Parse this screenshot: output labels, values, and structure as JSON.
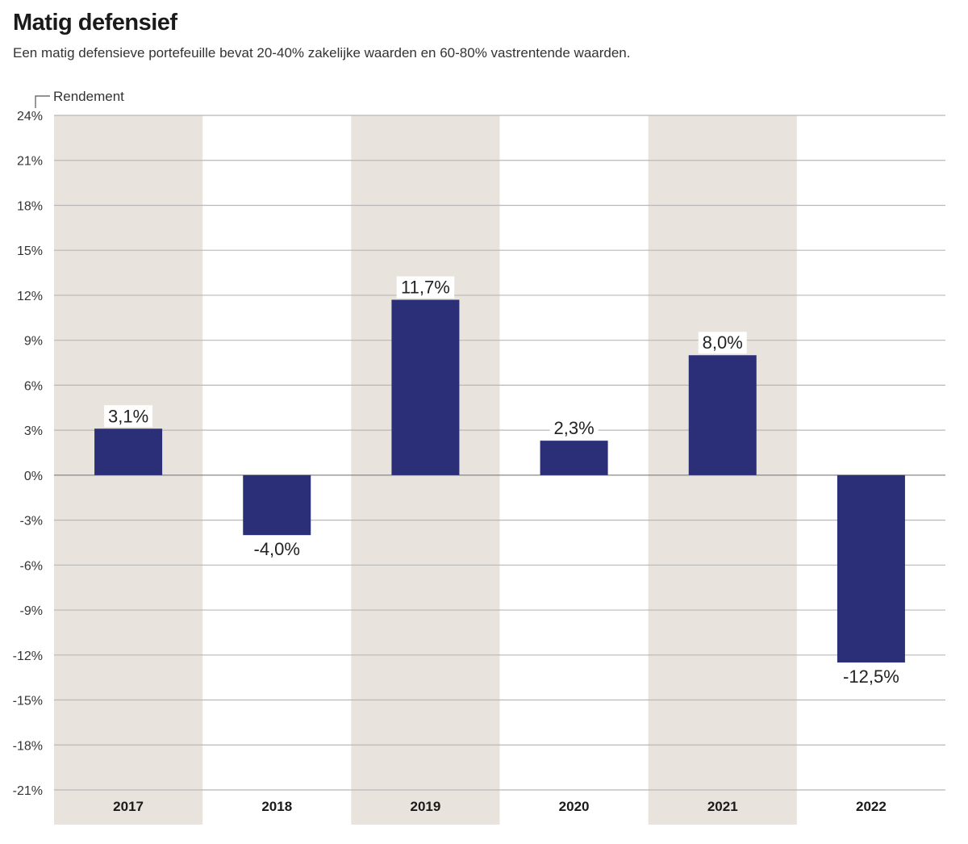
{
  "chart_data": {
    "type": "bar",
    "title": "Matig defensief",
    "subtitle": "Een matig defensieve portefeuille bevat 20-40% zakelijke waarden en 60-80% vastrentende waarden.",
    "ylabel": "Rendement",
    "xlabel": "",
    "categories": [
      "2017",
      "2018",
      "2019",
      "2020",
      "2021",
      "2022"
    ],
    "values": [
      3.1,
      -4.0,
      11.7,
      2.3,
      8.0,
      -12.5
    ],
    "value_labels": [
      "3,1%",
      "-4,0%",
      "11,7%",
      "2,3%",
      "8,0%",
      "-12,5%"
    ],
    "ylim": [
      -21,
      24
    ],
    "yticks": [
      24,
      21,
      18,
      15,
      12,
      9,
      6,
      3,
      0,
      -3,
      -6,
      -9,
      -12,
      -15,
      -18,
      -21
    ],
    "ytick_labels": [
      "24%",
      "21%",
      "18%",
      "15%",
      "12%",
      "9%",
      "6%",
      "3%",
      "0%",
      "-3%",
      "-6%",
      "-9%",
      "-12%",
      "-15%",
      "-18%",
      "-21%"
    ],
    "shaded_categories": [
      "2017",
      "2019",
      "2021"
    ],
    "grid": true,
    "colors": {
      "bar": "#2a2f78",
      "shade": "#e8e3dd",
      "grid": "#b8b8b8",
      "zero_line": "#888888"
    }
  }
}
